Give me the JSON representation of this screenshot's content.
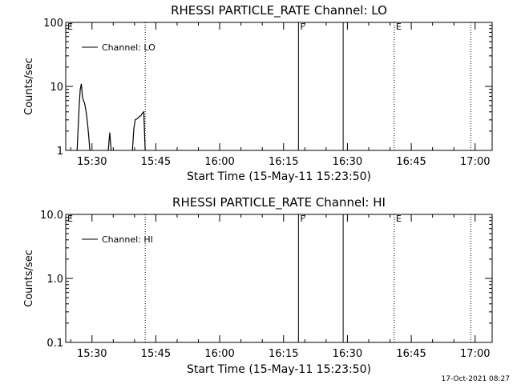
{
  "timestamp": "17-Oct-2021 08:27",
  "chart_data": [
    {
      "type": "line",
      "title": "RHESSI PARTICLE_RATE Channel: LO",
      "xlabel": "Start Time (15-May-11 15:23:50)",
      "ylabel": "Counts/sec",
      "y_scale": "log",
      "x_range": [
        "15:23:50",
        "17:04:00"
      ],
      "ylim": [
        1,
        100
      ],
      "x_ticks": [
        "15:30",
        "15:45",
        "16:00",
        "16:15",
        "16:30",
        "16:45",
        "17:00"
      ],
      "y_ticks": [
        "1",
        "10",
        "100"
      ],
      "legend": {
        "position": "top-left",
        "entries": [
          "Channel: LO"
        ]
      },
      "markers": [
        {
          "label": "E",
          "time": "15:23:50",
          "style": "dotted"
        },
        {
          "label": "",
          "time": "15:42:30",
          "style": "dotted"
        },
        {
          "label": "F",
          "time": "16:18:30",
          "style": "solid"
        },
        {
          "label": "",
          "time": "16:29:00",
          "style": "solid"
        },
        {
          "label": "E",
          "time": "16:41:00",
          "style": "dotted"
        },
        {
          "label": "",
          "time": "16:59:00",
          "style": "dotted"
        }
      ],
      "series": [
        {
          "name": "Channel: LO",
          "segments": [
            {
              "x": [
                "15:26:30",
                "15:27:00",
                "15:27:15",
                "15:27:30",
                "15:27:45",
                "15:28:00",
                "15:28:15",
                "15:28:30",
                "15:28:45",
                "15:29:00",
                "15:29:15",
                "15:29:30"
              ],
              "y": [
                1,
                5,
                9,
                11,
                7,
                6,
                5.5,
                4.5,
                3.5,
                2.5,
                1.6,
                1
              ]
            },
            {
              "x": [
                "15:33:50",
                "15:34:10",
                "15:34:30"
              ],
              "y": [
                1,
                1.9,
                1
              ]
            },
            {
              "x": [
                "15:39:30",
                "15:39:50",
                "15:40:10",
                "15:40:30",
                "15:40:50",
                "15:41:10",
                "15:41:30",
                "15:41:50",
                "15:42:10",
                "15:42:30"
              ],
              "y": [
                1,
                2.2,
                3,
                3.1,
                3.2,
                3.4,
                3.5,
                3.8,
                4,
                1
              ]
            }
          ]
        }
      ]
    },
    {
      "type": "line",
      "title": "RHESSI PARTICLE_RATE Channel: HI",
      "xlabel": "Start Time (15-May-11 15:23:50)",
      "ylabel": "Counts/sec",
      "y_scale": "log",
      "x_range": [
        "15:23:50",
        "17:04:00"
      ],
      "ylim": [
        0.1,
        10
      ],
      "x_ticks": [
        "15:30",
        "15:45",
        "16:00",
        "16:15",
        "16:30",
        "16:45",
        "17:00"
      ],
      "y_ticks": [
        "0.1",
        "1.0",
        "10.0"
      ],
      "legend": {
        "position": "top-left",
        "entries": [
          "Channel: HI"
        ]
      },
      "markers": [
        {
          "label": "E",
          "time": "15:23:50",
          "style": "dotted"
        },
        {
          "label": "",
          "time": "15:42:30",
          "style": "dotted"
        },
        {
          "label": "F",
          "time": "16:18:30",
          "style": "solid"
        },
        {
          "label": "",
          "time": "16:29:00",
          "style": "solid"
        },
        {
          "label": "E",
          "time": "16:41:00",
          "style": "dotted"
        },
        {
          "label": "",
          "time": "16:59:00",
          "style": "dotted"
        }
      ],
      "series": [
        {
          "name": "Channel: HI",
          "segments": []
        }
      ]
    }
  ]
}
